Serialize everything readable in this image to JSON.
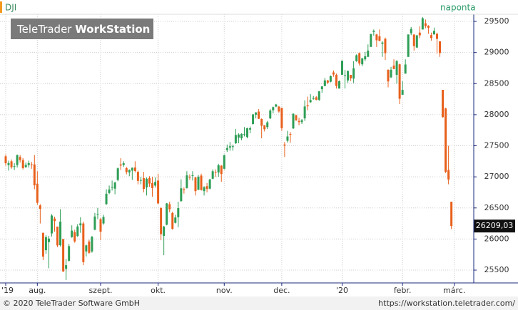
{
  "chart_data": {
    "type": "candlestick",
    "title": "DJI",
    "subtitle": "naponta",
    "watermark": [
      "TeleTrader",
      "WorkStation"
    ],
    "up_color": "#2e9e56",
    "down_color": "#e8601c",
    "grid": true,
    "ylim": [
      25294,
      29615
    ],
    "yticks": [
      25500,
      26000,
      26500,
      27000,
      27500,
      28000,
      28500,
      29000,
      29500
    ],
    "last_label": "26209,03",
    "categories": [
      "'19",
      null,
      null,
      null,
      null,
      null,
      null,
      null,
      null,
      null,
      null,
      "aug.",
      null,
      null,
      null,
      null,
      null,
      null,
      null,
      null,
      null,
      null,
      null,
      null,
      null,
      null,
      null,
      null,
      null,
      null,
      null,
      null,
      null,
      "szept.",
      null,
      null,
      null,
      null,
      null,
      null,
      null,
      null,
      null,
      null,
      null,
      null,
      null,
      null,
      null,
      null,
      null,
      null,
      null,
      "okt.",
      null,
      null,
      null,
      null,
      null,
      null,
      null,
      null,
      null,
      null,
      null,
      null,
      null,
      null,
      null,
      null,
      null,
      null,
      null,
      null,
      null,
      null,
      "nov.",
      null,
      null,
      null,
      null,
      null,
      null,
      null,
      null,
      null,
      null,
      null,
      null,
      null,
      null,
      null,
      null,
      null,
      null,
      null,
      "dec.",
      null,
      null,
      null,
      null,
      null,
      null,
      null,
      null,
      null,
      null,
      null,
      null,
      null,
      null,
      null,
      null,
      null,
      null,
      null,
      null,
      "'20",
      null,
      null,
      null,
      null,
      null,
      null,
      null,
      null,
      null,
      null,
      null,
      null,
      null,
      null,
      null,
      null,
      null,
      null,
      null,
      null,
      "febr.",
      null,
      null,
      null,
      null,
      null,
      null,
      null,
      null,
      null,
      null,
      null,
      null,
      null,
      null,
      null,
      null,
      null,
      "márc."
    ],
    "open": [
      27330,
      27190,
      27250,
      27160,
      27190,
      27320,
      27270,
      27160,
      27190,
      27200,
      27200,
      26890,
      26540,
      26100,
      25820,
      25950,
      26090,
      26330,
      26200,
      25900,
      26000,
      25520,
      25650,
      26030,
      26110,
      26050,
      26220,
      26250,
      25800,
      25960,
      25800,
      26150,
      26400,
      26320,
      26250,
      26560,
      26740,
      26830,
      26810,
      26950,
      27200,
      27190,
      27140,
      27070,
      27100,
      27150,
      27080,
      26940,
      26980,
      26830,
      26980,
      26900,
      26860,
      26940,
      26500,
      26050,
      26230,
      26560,
      26420,
      26260,
      26350,
      26610,
      26800,
      26820,
      27000,
      27020,
      26990,
      26790,
      27020,
      26770,
      26850,
      26810,
      26970,
      27080,
      27070,
      27180,
      27130,
      27430,
      27470,
      27480,
      27540,
      27630,
      27620,
      27680,
      27640,
      27760,
      27850,
      28000,
      28050,
      27930,
      27830,
      27800,
      27940,
      28070,
      28130,
      28130,
      28110,
      27520,
      27580,
      27690,
      27780,
      27990,
      27900,
      27880,
      27940,
      28150,
      28200,
      28260,
      28280,
      28240,
      28410,
      28460,
      28550,
      28530,
      28680,
      28640,
      28420,
      28640,
      28630,
      28550,
      28640,
      28580,
      28860,
      28990,
      28810,
      28890,
      28930,
      29090,
      29330,
      29290,
      29260,
      29140,
      29220,
      28720,
      28600,
      28790,
      28640,
      28810,
      28320,
      28660,
      28930,
      29310,
      29290,
      29080,
      29320,
      29370,
      29470,
      29430,
      29280,
      29290,
      29300,
      29180,
      28400,
      28100,
      27110,
      26600,
      null
    ],
    "high": [
      27360,
      27260,
      27280,
      27220,
      27360,
      27350,
      27300,
      27230,
      27260,
      27240,
      27350,
      27090,
      26560,
      26100,
      26060,
      26050,
      26400,
      26360,
      26200,
      26480,
      26000,
      25680,
      25920,
      26220,
      26150,
      26240,
      26350,
      26280,
      25910,
      25990,
      26050,
      26420,
      26500,
      26340,
      26390,
      26800,
      26860,
      26940,
      26920,
      27150,
      27300,
      27250,
      27160,
      27120,
      27150,
      27250,
      27100,
      27000,
      27080,
      26990,
      27010,
      27000,
      26990,
      27050,
      26510,
      26210,
      26580,
      26600,
      26440,
      26390,
      26600,
      26960,
      26830,
      27090,
      27040,
      27090,
      27000,
      27030,
      27050,
      26850,
      26900,
      26970,
      27120,
      27120,
      27210,
      27190,
      27360,
      27520,
      27560,
      27520,
      27770,
      27700,
      27700,
      27800,
      27790,
      27810,
      28010,
      28040,
      28090,
      27940,
      27830,
      27900,
      28090,
      28130,
      28174,
      28140,
      28110,
      27560,
      27740,
      27720,
      28020,
      28000,
      27950,
      27930,
      28230,
      28290,
      28330,
      28300,
      28300,
      28380,
      28460,
      28590,
      28560,
      28630,
      28710,
      28660,
      28550,
      28870,
      28720,
      28710,
      28640,
      28860,
      28970,
      29000,
      28910,
      29010,
      29130,
      29300,
      29370,
      29300,
      29370,
      29180,
      29240,
      28730,
      28770,
      28890,
      28880,
      28820,
      28540,
      28890,
      29290,
      29410,
      29290,
      29280,
      29420,
      29568,
      29530,
      29440,
      29320,
      29400,
      29320,
      29180,
      28400,
      28110,
      27500,
      26600,
      null
    ],
    "low": [
      27180,
      27100,
      27130,
      27110,
      27150,
      27230,
      27120,
      27140,
      27150,
      27130,
      26800,
      26550,
      26250,
      25660,
      25760,
      25530,
      26040,
      26120,
      25870,
      25880,
      25470,
      25340,
      25640,
      26020,
      25940,
      26030,
      26100,
      25580,
      25720,
      25760,
      25780,
      26140,
      26320,
      25980,
      26230,
      26550,
      26720,
      26780,
      26720,
      26930,
      27110,
      27160,
      27040,
      27010,
      26950,
      27070,
      26880,
      26880,
      26750,
      26700,
      26840,
      26680,
      26830,
      26560,
      25980,
      25740,
      26220,
      26430,
      26150,
      26250,
      26190,
      26600,
      26730,
      26810,
      26950,
      26940,
      26700,
      26790,
      26780,
      26700,
      26750,
      26800,
      26960,
      27000,
      27000,
      26920,
      27120,
      27400,
      27420,
      27420,
      27530,
      27540,
      27590,
      27650,
      27620,
      27700,
      27840,
      27940,
      27930,
      27620,
      27730,
      27770,
      27930,
      28020,
      28120,
      28030,
      27740,
      27320,
      27550,
      27550,
      27770,
      27900,
      27830,
      27850,
      27900,
      28070,
      28190,
      28240,
      28230,
      28220,
      28350,
      28460,
      28490,
      28520,
      28610,
      28420,
      28420,
      28640,
      28420,
      28510,
      28540,
      28510,
      28850,
      28790,
      28780,
      28860,
      28930,
      29090,
      29270,
      29090,
      29180,
      28930,
      28880,
      28440,
      28590,
      28730,
      28500,
      28170,
      28320,
      28660,
      28930,
      29280,
      29030,
      29070,
      29230,
      29370,
      29390,
      29300,
      29190,
      29290,
      28980,
      28930,
      27950,
      27060,
      26880,
      26160,
      null
    ],
    "close": [
      27219,
      27222,
      27154,
      27171,
      27349,
      27269,
      27140,
      27192,
      27221,
      27198,
      26864,
      26583,
      26485,
      25717,
      26030,
      26007,
      26378,
      26287,
      25897,
      26280,
      25479,
      25579,
      25886,
      26135,
      25962,
      26202,
      26252,
      25628,
      25898,
      25778,
      26036,
      26362,
      26403,
      26118,
      26355,
      26728,
      26797,
      26835,
      26909,
      27137,
      27182,
      27219,
      27076,
      27110,
      27147,
      27094,
      26935,
      26949,
      26807,
      26970,
      26891,
      26820,
      26917,
      26573,
      26078,
      26201,
      26573,
      26478,
      26164,
      26346,
      26497,
      26816,
      26787,
      27024,
      26998,
      27025,
      26770,
      27001,
      26788,
      26833,
      26805,
      26958,
      27090,
      27071,
      27186,
      27046,
      27347,
      27462,
      27492,
      27492,
      27674,
      27681,
      27691,
      27691,
      27783,
      27781,
      28005,
      28036,
      27934,
      27821,
      27766,
      27876,
      28066,
      28121,
      28164,
      28051,
      27783,
      27502,
      27649,
      27677,
      28015,
      27909,
      27881,
      27911,
      28132,
      28135,
      28235,
      28267,
      28239,
      28376,
      28455,
      28551,
      28515,
      28621,
      28645,
      28462,
      28538,
      28868,
      28634,
      28703,
      28583,
      28745,
      28956,
      28823,
      28907,
      28940,
      29030,
      29297,
      29348,
      29196,
      29186,
      29160,
      28989,
      28535,
      28723,
      28734,
      28859,
      28256,
      28399,
      28807,
      29290,
      29379,
      29102,
      29276,
      29276,
      29551,
      29423,
      29398,
      29232,
      29348,
      29219,
      28992,
      27961,
      27081,
      26957,
      26209.03,
      null
    ]
  },
  "footer": {
    "copyright": "© 2020 TeleTrader Software GmbH",
    "url": "https://workstation.teletrader.com/"
  }
}
